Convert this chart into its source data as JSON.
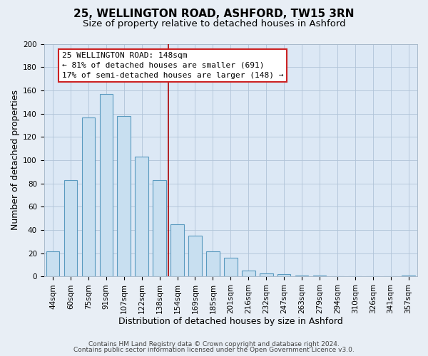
{
  "title": "25, WELLINGTON ROAD, ASHFORD, TW15 3RN",
  "subtitle": "Size of property relative to detached houses in Ashford",
  "xlabel": "Distribution of detached houses by size in Ashford",
  "ylabel": "Number of detached properties",
  "bar_labels": [
    "44sqm",
    "60sqm",
    "75sqm",
    "91sqm",
    "107sqm",
    "122sqm",
    "138sqm",
    "154sqm",
    "169sqm",
    "185sqm",
    "201sqm",
    "216sqm",
    "232sqm",
    "247sqm",
    "263sqm",
    "279sqm",
    "294sqm",
    "310sqm",
    "326sqm",
    "341sqm",
    "357sqm"
  ],
  "bar_values": [
    22,
    83,
    137,
    157,
    138,
    103,
    83,
    45,
    35,
    22,
    16,
    5,
    3,
    2,
    1,
    1,
    0,
    0,
    0,
    0,
    1
  ],
  "bar_color": "#c8dff0",
  "bar_edge_color": "#5a9abf",
  "bar_width": 0.75,
  "vline_x": 6.5,
  "vline_color": "#aa0000",
  "annotation_title": "25 WELLINGTON ROAD: 148sqm",
  "annotation_line1": "← 81% of detached houses are smaller (691)",
  "annotation_line2": "17% of semi-detached houses are larger (148) →",
  "annotation_box_color": "#ffffff",
  "annotation_box_edge_color": "#cc2222",
  "ylim": [
    0,
    200
  ],
  "yticks": [
    0,
    20,
    40,
    60,
    80,
    100,
    120,
    140,
    160,
    180,
    200
  ],
  "footer_line1": "Contains HM Land Registry data © Crown copyright and database right 2024.",
  "footer_line2": "Contains public sector information licensed under the Open Government Licence v3.0.",
  "bg_color": "#e8eef5",
  "plot_bg_color": "#dce8f5",
  "grid_color": "#b0c4d8",
  "title_fontsize": 11,
  "subtitle_fontsize": 9.5,
  "axis_label_fontsize": 9,
  "tick_fontsize": 7.5,
  "footer_fontsize": 6.5,
  "ann_fontsize": 8
}
